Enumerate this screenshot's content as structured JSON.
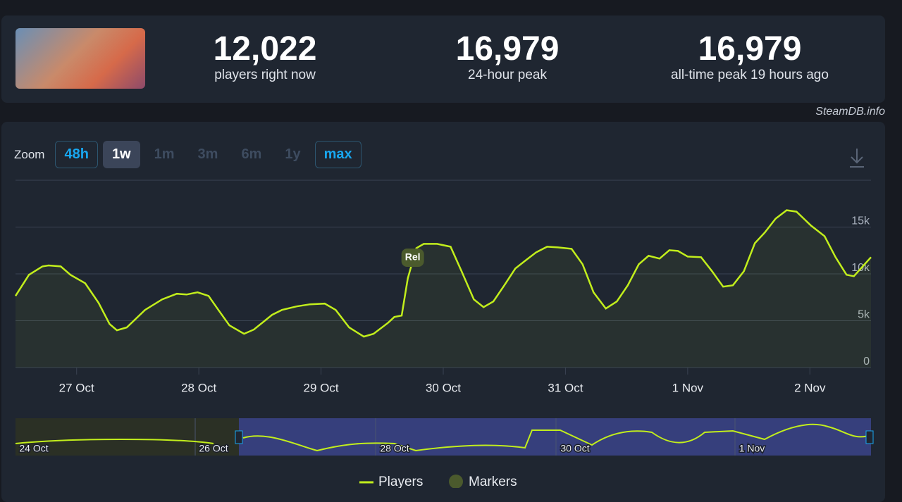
{
  "header": {
    "stats": [
      {
        "value": "12,022",
        "label": "players right now"
      },
      {
        "value": "16,979",
        "label": "24-hour peak"
      },
      {
        "value": "16,979",
        "label": "all-time peak 19 hours ago"
      }
    ]
  },
  "watermark": "SteamDB.info",
  "zoom": {
    "label": "Zoom",
    "options": [
      "48h",
      "1w",
      "1m",
      "3m",
      "6m",
      "1y",
      "max"
    ]
  },
  "chart_data": {
    "type": "line",
    "x": [
      26.5,
      26.61,
      26.72,
      26.77,
      26.87,
      26.95,
      27.07,
      27.18,
      27.27,
      27.33,
      27.41,
      27.56,
      27.7,
      27.82,
      27.9,
      27.99,
      28.08,
      28.16,
      28.25,
      28.37,
      28.45,
      28.6,
      28.68,
      28.8,
      28.91,
      29.03,
      29.12,
      29.23,
      29.35,
      29.43,
      29.55,
      29.6,
      29.66,
      29.71,
      29.78,
      29.84,
      29.95,
      30.06,
      30.15,
      30.25,
      30.33,
      30.41,
      30.5,
      30.59,
      30.67,
      30.76,
      30.85,
      30.94,
      31.05,
      31.14,
      31.23,
      31.33,
      31.42,
      31.51,
      31.6,
      31.68,
      31.77,
      31.85,
      31.92,
      32.0,
      32.11,
      32.2,
      32.29,
      32.37,
      32.46,
      32.55,
      32.63,
      32.72,
      32.81,
      32.89,
      33.01,
      33.12,
      33.21,
      33.3,
      33.36,
      33.5
    ],
    "series": [
      {
        "name": "Players",
        "color": "#c2ee1c",
        "values": [
          7650,
          9900,
          10800,
          10900,
          10800,
          9900,
          9000,
          6900,
          4650,
          3980,
          4280,
          6150,
          7280,
          7880,
          7800,
          8030,
          7650,
          6150,
          4500,
          3600,
          4050,
          5630,
          6150,
          6530,
          6750,
          6830,
          6150,
          4280,
          3300,
          3600,
          4800,
          5400,
          5550,
          9530,
          12750,
          13200,
          13200,
          12900,
          10280,
          7280,
          6450,
          7050,
          8780,
          10580,
          11400,
          12300,
          12900,
          12830,
          12680,
          11030,
          8030,
          6300,
          7050,
          8780,
          11030,
          11930,
          11630,
          12530,
          12450,
          11850,
          11780,
          10280,
          8630,
          8780,
          10280,
          13280,
          14400,
          15900,
          16800,
          16650,
          15150,
          14030,
          11780,
          9900,
          9750,
          11780
        ]
      }
    ],
    "xlim": [
      26.5,
      33.5
    ],
    "xticks": [
      {
        "value": 27,
        "label": "27 Oct"
      },
      {
        "value": 28,
        "label": "28 Oct"
      },
      {
        "value": 29,
        "label": "29 Oct"
      },
      {
        "value": 30,
        "label": "30 Oct"
      },
      {
        "value": 31,
        "label": "31 Oct"
      },
      {
        "value": 32,
        "label": "1 Nov"
      },
      {
        "value": 33,
        "label": "2 Nov"
      }
    ],
    "ylim": [
      0,
      20000
    ],
    "yticks": [
      0,
      {
        "value": 5000,
        "label": "5k"
      },
      {
        "value": 10000,
        "label": "10k"
      },
      {
        "value": 15000,
        "label": "15k"
      }
    ],
    "grid": true,
    "annotations": [
      {
        "x": 29.75,
        "text": "Rel"
      }
    ],
    "markers_label": "Markers"
  },
  "navigator": {
    "labels": [
      "24 Oct",
      "26 Oct",
      "28 Oct",
      "30 Oct",
      "1 Nov"
    ]
  }
}
